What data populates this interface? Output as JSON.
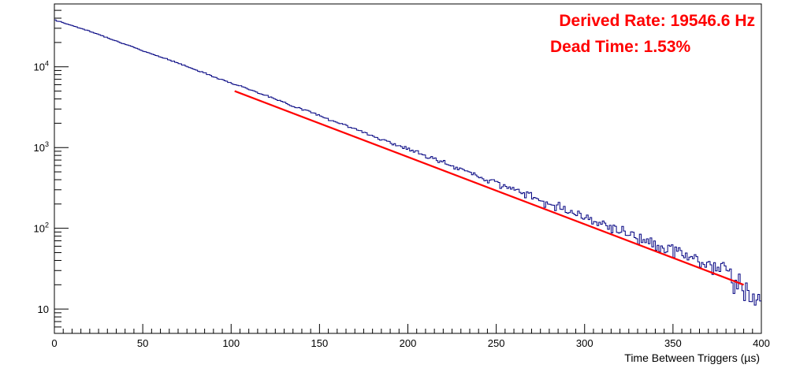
{
  "chart_data": {
    "type": "line",
    "title": "",
    "xlabel": "Time Between Triggers (µs)",
    "ylabel": "",
    "xlim": [
      0,
      400
    ],
    "ylim": [
      5,
      60000
    ],
    "yscale": "log",
    "grid": false,
    "x_ticks": [
      "0",
      "50",
      "100",
      "150",
      "200",
      "250",
      "300",
      "350",
      "400"
    ],
    "y_ticks": [
      {
        "value": 10,
        "label": "10"
      },
      {
        "value": 100,
        "label": "10",
        "exp": "2"
      },
      {
        "value": 1000,
        "label": "10",
        "exp": "3"
      },
      {
        "value": 10000,
        "label": "10",
        "exp": "4"
      }
    ],
    "annotations": [
      "Derived Rate: 19546.6 Hz",
      "Dead Time: 1.53%"
    ],
    "series": [
      {
        "kind": "histogram",
        "color": "#000080",
        "bin_width": 1,
        "x": [
          0,
          2,
          3,
          5,
          10,
          20,
          30,
          40,
          50,
          60,
          70,
          80,
          90,
          100,
          110,
          120,
          130,
          140,
          150,
          160,
          170,
          180,
          190,
          200,
          210,
          220,
          230,
          240,
          250,
          260,
          270,
          280,
          290,
          300,
          310,
          320,
          330,
          340,
          350,
          360,
          370,
          380,
          385,
          390,
          395,
          400
        ],
        "values": [
          39000,
          36000,
          37000,
          35000,
          32500,
          27500,
          23000,
          19000,
          15800,
          13300,
          11100,
          9200,
          7600,
          6300,
          5300,
          4400,
          3600,
          3000,
          2500,
          2050,
          1700,
          1400,
          1150,
          960,
          790,
          650,
          540,
          440,
          370,
          300,
          250,
          205,
          170,
          140,
          115,
          95,
          78,
          65,
          53,
          44,
          36,
          30,
          22,
          17,
          15,
          13
        ]
      },
      {
        "kind": "fit",
        "color": "#ff0000",
        "x": [
          102,
          390
        ],
        "values": [
          5000,
          20
        ]
      }
    ]
  }
}
